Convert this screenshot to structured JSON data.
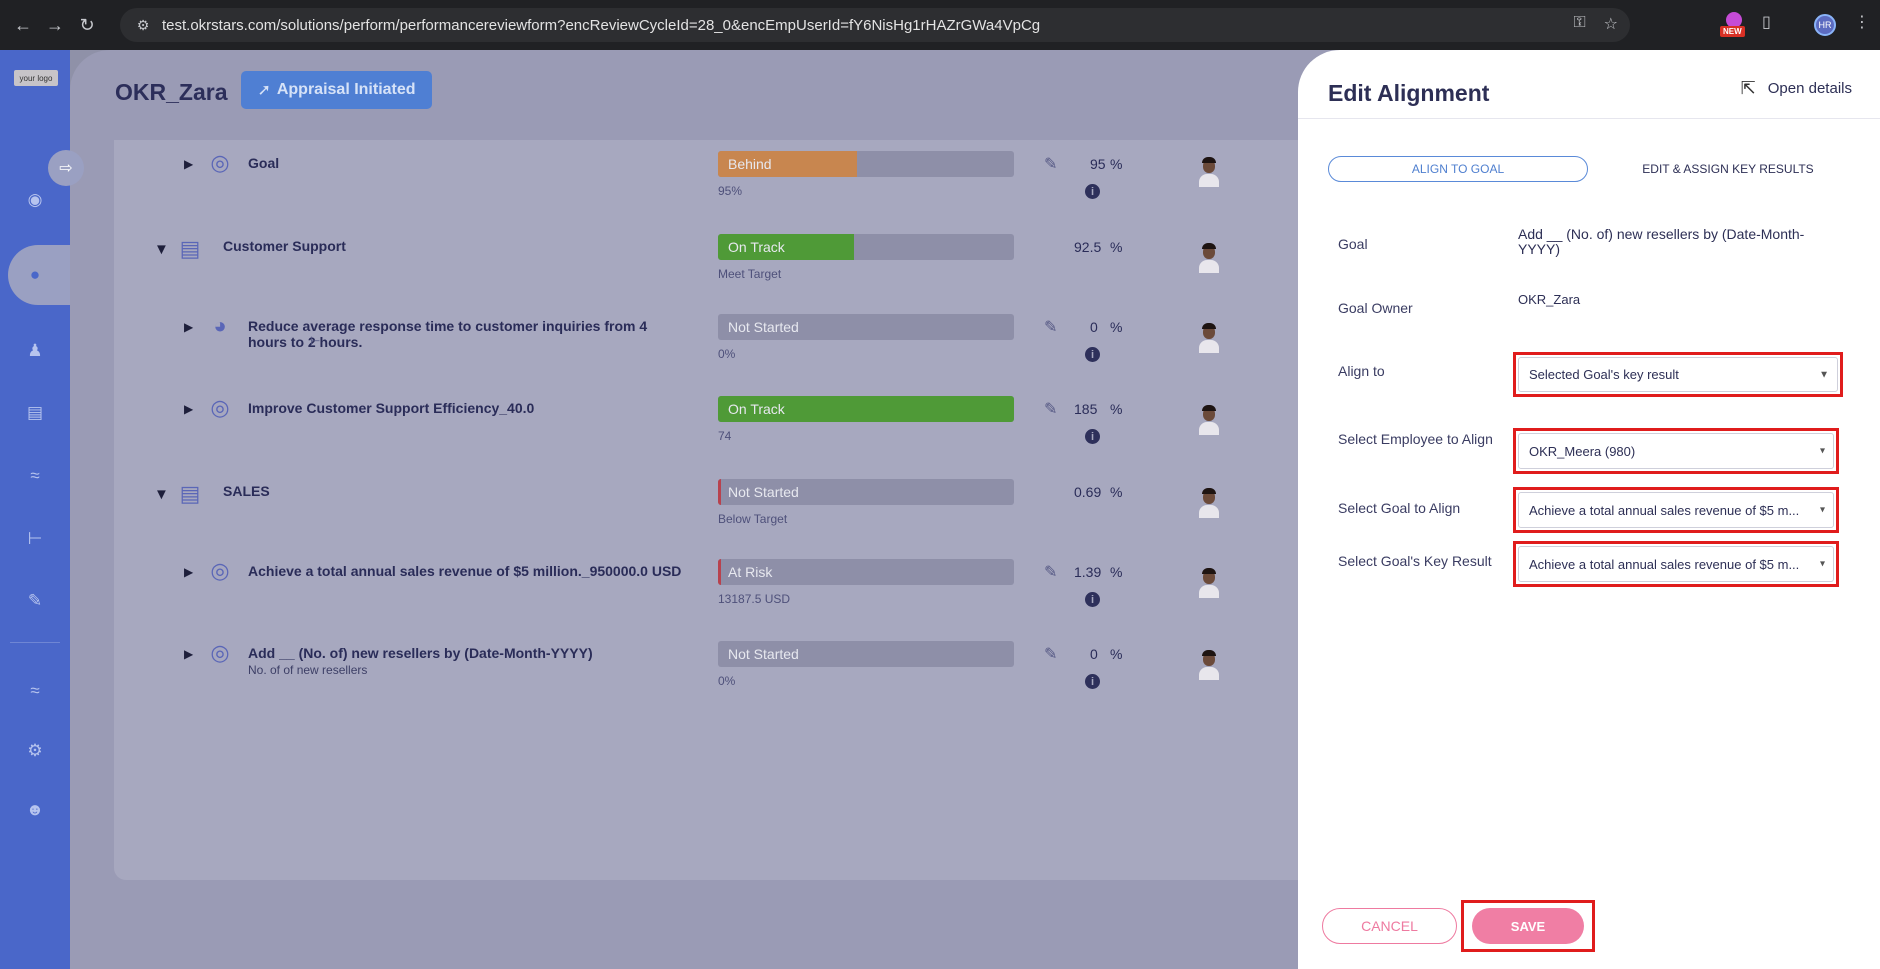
{
  "browser": {
    "url": "test.okrstars.com/solutions/perform/performancereviewform?encReviewCycleId=28_0&encEmpUserId=fY6NisHg1rHAZrGWa4VpCg",
    "new_badge": "NEW",
    "profile_initials": "HR"
  },
  "app": {
    "logo_text": "your logo",
    "page_title": "OKR_Zara",
    "status_badge": "Appraisal Initiated"
  },
  "rows": [
    {
      "title": "Goal",
      "sub": "",
      "status": "Behind",
      "progress": 0.47,
      "color": "#c8864f",
      "under": "95%",
      "pct": "95",
      "level": 2,
      "icon": "target-icon",
      "edit": true
    },
    {
      "title": "Customer Support",
      "sub": "",
      "status": "On Track",
      "progress": 0.46,
      "color": "#4f9a37",
      "under": "Meet Target",
      "pct": "92.5",
      "level": 1,
      "icon": "clipboard-icon",
      "edit": false
    },
    {
      "title": "Reduce average response time to customer inquiries from 4 hours to 2 hours.",
      "sub": "",
      "status": "Not Started",
      "progress": 0,
      "color": "#8e8fa8",
      "under": "0%",
      "pct": "0",
      "level": 2,
      "icon": "gauge-icon",
      "edit": true
    },
    {
      "title": "Improve Customer Support Efficiency_40.0",
      "sub": "",
      "status": "On Track",
      "progress": 1,
      "color": "#4f9a37",
      "under": "74",
      "pct": "185",
      "level": 2,
      "icon": "target-icon",
      "edit": true
    },
    {
      "title": "SALES",
      "sub": "",
      "status": "Not Started",
      "progress": 0.01,
      "color": "#b8424e",
      "under": "Below Target",
      "pct": "0.69",
      "level": 1,
      "icon": "clipboard-icon",
      "edit": false
    },
    {
      "title": "Achieve a total annual sales revenue of $5 million._950000.0 USD",
      "sub": "",
      "status": "At Risk",
      "progress": 0.01,
      "color": "#b8424e",
      "under": "13187.5 USD",
      "pct": "1.39",
      "level": 2,
      "icon": "target-icon",
      "edit": true
    },
    {
      "title": "Add __ (No. of) new resellers by (Date-Month-YYYY)",
      "sub": "No. of of new resellers",
      "status": "Not Started",
      "progress": 0,
      "color": "#8e8fa8",
      "under": "0%",
      "pct": "0",
      "level": 2,
      "icon": "target-icon",
      "edit": true
    }
  ],
  "pct_sign": "%",
  "drawer": {
    "title": "Edit Alignment",
    "open_details": "Open details",
    "tab_align": "ALIGN TO GOAL",
    "tab_edit": "EDIT & ASSIGN KEY RESULTS",
    "goal_label": "Goal",
    "goal_value": "Add __ (No. of) new resellers by (Date-Month-YYYY)",
    "owner_label": "Goal Owner",
    "owner_value": "OKR_Zara",
    "align_label": "Align to",
    "align_value": "Selected Goal's key result",
    "employee_label": "Select Employee to Align",
    "employee_value": "OKR_Meera (980)",
    "goal_align_label": "Select Goal to Align",
    "goal_align_value": "Achieve a total annual sales revenue of $5 m...",
    "kr_label": "Select Goal's Key Result",
    "kr_value": "Achieve a total annual sales revenue of $5 m...",
    "cancel": "CANCEL",
    "save": "SAVE"
  }
}
